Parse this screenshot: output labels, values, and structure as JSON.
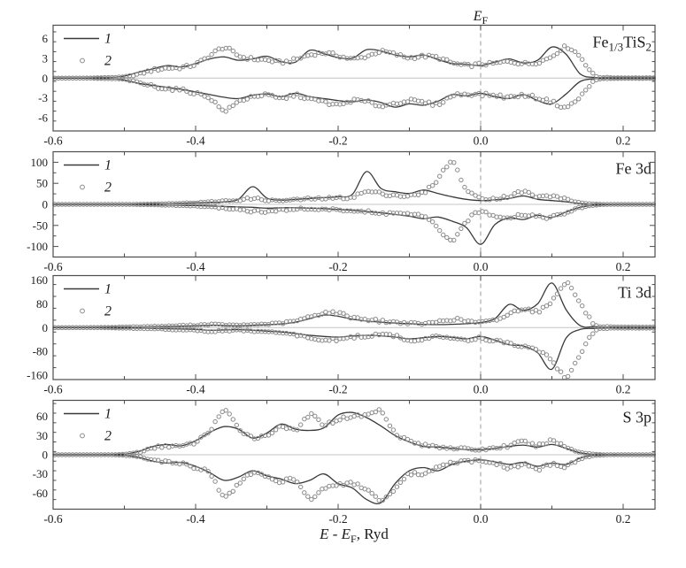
{
  "figure": {
    "top_label_text": "EF",
    "x_axis_title_text": "E - EF, Ryd",
    "colors": {
      "frame": "#4d4d4d",
      "tick": "#4d4d4d",
      "label": "#1c1c1c",
      "line_series": "#3a3a3a",
      "circle_series": "#8a8a8a",
      "zero_line": "#c4c4c4",
      "fermi_dash": "#ababab",
      "background": "#ffffff"
    }
  },
  "chart_data": {
    "type": "line",
    "xlabel_segments": [
      {
        "t": "E",
        "italic": true
      },
      {
        "t": " - "
      },
      {
        "t": "E",
        "italic": true
      },
      {
        "t": "F",
        "sub": true
      },
      {
        "t": ", Ryd"
      }
    ],
    "fermi_label_segments": [
      {
        "t": "E",
        "italic": true
      },
      {
        "t": "F",
        "sub": true
      }
    ],
    "x_start": -0.6,
    "x_step": 0.02,
    "x_end": 0.245,
    "x_tick_step": 0.1,
    "x_ticks_labeled": [
      -0.6,
      -0.4,
      -0.2,
      0.0,
      0.2
    ],
    "fermi_line_x": 0.0,
    "marker_spacing": 0.005,
    "legend": {
      "line_label": "1",
      "circle_label": "2"
    },
    "grid": false,
    "legend_position": "top-left",
    "panels": [
      {
        "title": "Fe1/3TiS2",
        "title_segments": [
          {
            "t": "Fe"
          },
          {
            "t": "1/3",
            "sub": true
          },
          {
            "t": "TiS"
          },
          {
            "t": "2",
            "sub": true
          }
        ],
        "ylim": [
          -8,
          8
        ],
        "y_ticks": [
          -6,
          -3,
          0,
          3,
          6
        ],
        "y_minor_step": 1.5,
        "series": [
          {
            "name": "1",
            "style": "line",
            "up": [
              0,
              0,
              0,
              0.05,
              0.1,
              0.3,
              0.9,
              1.4,
              1.9,
              1.7,
              2.2,
              2.9,
              3.2,
              2.7,
              2.9,
              3.3,
              2.5,
              2.4,
              4.2,
              3.7,
              3.1,
              3.0,
              4.3,
              4.1,
              3.5,
              3.2,
              3.5,
              2.8,
              2.2,
              2.1,
              1.9,
              2.4,
              2.9,
              2.3,
              2.7,
              4.7,
              3.6,
              0.6,
              0.1,
              0.05,
              0.05,
              0.05,
              0.05
            ],
            "down": [
              0,
              0,
              0,
              -0.05,
              -0.1,
              -0.3,
              -0.8,
              -1.1,
              -1.4,
              -1.7,
              -2.1,
              -2.5,
              -2.9,
              -3.1,
              -2.6,
              -2.4,
              -2.8,
              -2.3,
              -2.8,
              -3.1,
              -3.4,
              -3.6,
              -3.3,
              -3.7,
              -4.4,
              -3.9,
              -4.1,
              -3.5,
              -2.5,
              -2.7,
              -2.3,
              -2.8,
              -3.1,
              -2.5,
              -3.4,
              -3.9,
              -2.4,
              -0.5,
              -0.1,
              -0.05,
              -0.05,
              -0.05,
              -0.05
            ]
          },
          {
            "name": "2",
            "style": "circles",
            "up": [
              0,
              0,
              0,
              0.05,
              0.1,
              0.2,
              0.6,
              1.2,
              1.5,
              1.6,
              2.1,
              3.4,
              4.6,
              3.4,
              2.9,
              2.7,
              2.4,
              2.8,
              3.5,
              3.8,
              3.4,
              2.9,
              3.3,
              4.0,
              3.6,
              3.1,
              3.3,
              3.1,
              2.3,
              1.9,
              2.1,
              2.2,
              2.5,
              2.2,
              2.4,
              3.3,
              4.7,
              3.2,
              0.4,
              0.1,
              0.05,
              0.05,
              0.05
            ],
            "down": [
              0,
              0,
              0,
              -0.05,
              -0.1,
              -0.2,
              -0.7,
              -1.2,
              -1.6,
              -1.8,
              -2.3,
              -3.0,
              -4.9,
              -3.6,
              -2.8,
              -2.6,
              -3.1,
              -2.6,
              -3.2,
              -3.6,
              -4.1,
              -3.4,
              -3.6,
              -4.2,
              -3.8,
              -3.4,
              -3.7,
              -3.9,
              -2.7,
              -2.4,
              -2.5,
              -2.6,
              -2.9,
              -2.6,
              -3.0,
              -3.6,
              -4.4,
              -2.8,
              -0.4,
              -0.1,
              -0.05,
              -0.05,
              -0.05
            ]
          }
        ]
      },
      {
        "title": "Fe 3d",
        "title_segments": [
          {
            "t": "Fe 3d"
          }
        ],
        "ylim": [
          -125,
          125
        ],
        "y_ticks": [
          -100,
          -50,
          0,
          50,
          100
        ],
        "y_minor_step": 25,
        "series": [
          {
            "name": "1",
            "style": "line",
            "up": [
              0,
              0,
              0,
              0,
              0,
              0,
              0.5,
              1,
              2,
              3,
              4,
              5,
              6,
              12,
              42,
              15,
              10,
              12,
              14,
              16,
              18,
              24,
              78,
              38,
              30,
              26,
              34,
              26,
              18,
              12,
              9,
              11,
              14,
              20,
              12,
              9,
              6,
              2,
              0.5,
              0,
              0,
              0,
              0
            ],
            "down": [
              0,
              0,
              0,
              0,
              0,
              0,
              -0.5,
              -1,
              -2,
              -2.5,
              -3,
              -4,
              -5,
              -6,
              -7,
              -9,
              -8,
              -8,
              -9,
              -10,
              -12,
              -14,
              -17,
              -20,
              -24,
              -28,
              -34,
              -30,
              -40,
              -55,
              -95,
              -48,
              -32,
              -36,
              -26,
              -31,
              -18,
              -7,
              -2,
              -0.5,
              0,
              0,
              0
            ]
          },
          {
            "name": "2",
            "style": "circles",
            "up": [
              0,
              0,
              0,
              0,
              0,
              0,
              0.5,
              1,
              2,
              3,
              4,
              6,
              8,
              10,
              14,
              10,
              9,
              11,
              13,
              14,
              15,
              18,
              30,
              26,
              22,
              20,
              28,
              60,
              100,
              35,
              16,
              14,
              20,
              30,
              18,
              20,
              12,
              4,
              1,
              0,
              0,
              0,
              0
            ],
            "down": [
              0,
              0,
              0,
              0,
              0,
              0,
              -0.5,
              -1,
              -2,
              -3,
              -4,
              -6,
              -9,
              -12,
              -16,
              -18,
              -14,
              -11,
              -11,
              -12,
              -13,
              -15,
              -18,
              -22,
              -20,
              -24,
              -30,
              -55,
              -88,
              -40,
              -18,
              -26,
              -30,
              -24,
              -28,
              -30,
              -20,
              -8,
              -2,
              0,
              0,
              0,
              0
            ]
          }
        ]
      },
      {
        "title": "Ti 3d",
        "title_segments": [
          {
            "t": "Ti 3d"
          }
        ],
        "ylim": [
          -175,
          175
        ],
        "y_ticks": [
          -160,
          -80,
          0,
          80,
          160
        ],
        "y_minor_step": 40,
        "series": [
          {
            "name": "1",
            "style": "line",
            "up": [
              0,
              0,
              0,
              0.5,
              1,
              1.5,
              2,
              3,
              4,
              5,
              6,
              8,
              7,
              6,
              8,
              10,
              12,
              18,
              30,
              42,
              38,
              28,
              22,
              18,
              15,
              13,
              11,
              10,
              11,
              13,
              17,
              30,
              78,
              58,
              80,
              150,
              60,
              6,
              3,
              2,
              2,
              2,
              2
            ],
            "down": [
              0,
              0,
              0,
              -0.5,
              -1,
              -1.5,
              -2,
              -3,
              -4,
              -5,
              -6,
              -9,
              -8,
              -7,
              -9,
              -12,
              -15,
              -20,
              -26,
              -30,
              -32,
              -28,
              -26,
              -28,
              -32,
              -38,
              -34,
              -30,
              -33,
              -38,
              -30,
              -42,
              -58,
              -62,
              -85,
              -140,
              -35,
              -6,
              -3,
              -2,
              -2,
              -2,
              -2
            ]
          },
          {
            "name": "2",
            "style": "circles",
            "up": [
              0,
              0,
              0,
              0.5,
              1,
              2,
              3,
              4,
              5,
              7,
              8,
              11,
              9,
              8,
              10,
              12,
              15,
              22,
              35,
              50,
              48,
              35,
              28,
              22,
              18,
              15,
              13,
              20,
              28,
              22,
              18,
              25,
              45,
              65,
              55,
              90,
              150,
              80,
              10,
              3,
              2,
              2,
              2
            ],
            "down": [
              0,
              0,
              0,
              -0.5,
              -1,
              -2,
              -3,
              -4,
              -6,
              -8,
              -9,
              -13,
              -11,
              -9,
              -12,
              -15,
              -18,
              -25,
              -35,
              -42,
              -40,
              -32,
              -28,
              -25,
              -28,
              -42,
              -38,
              -32,
              -35,
              -40,
              -35,
              -45,
              -55,
              -65,
              -75,
              -110,
              -165,
              -90,
              -12,
              -3,
              -2,
              -2,
              -2
            ]
          }
        ]
      },
      {
        "title": "S 3p",
        "title_segments": [
          {
            "t": "S 3p"
          }
        ],
        "ylim": [
          -85,
          85
        ],
        "y_ticks": [
          -60,
          -30,
          0,
          30,
          60
        ],
        "y_minor_step": 15,
        "series": [
          {
            "name": "1",
            "style": "line",
            "up": [
              0,
              0,
              0,
              0,
              0,
              1,
              5,
              13,
              16,
              14,
              22,
              35,
              44,
              40,
              26,
              34,
              48,
              40,
              38,
              42,
              62,
              66,
              58,
              45,
              30,
              20,
              13,
              12,
              10,
              8,
              8,
              10,
              13,
              15,
              12,
              16,
              10,
              3,
              0.5,
              0,
              0,
              0,
              0
            ],
            "down": [
              0,
              0,
              0,
              0,
              0,
              -1,
              -4,
              -10,
              -13,
              -12,
              -18,
              -28,
              -40,
              -35,
              -25,
              -33,
              -38,
              -45,
              -40,
              -30,
              -45,
              -52,
              -70,
              -75,
              -45,
              -25,
              -20,
              -25,
              -15,
              -10,
              -8,
              -11,
              -15,
              -12,
              -18,
              -13,
              -15,
              -5,
              -1,
              0,
              0,
              0,
              0
            ]
          },
          {
            "name": "2",
            "style": "circles",
            "up": [
              0,
              0,
              0,
              0,
              0,
              1,
              4,
              10,
              14,
              13,
              20,
              38,
              68,
              42,
              28,
              30,
              45,
              38,
              62,
              48,
              55,
              60,
              62,
              68,
              35,
              22,
              15,
              13,
              11,
              9,
              8,
              11,
              14,
              20,
              14,
              22,
              12,
              4,
              1,
              0,
              0,
              0,
              0
            ],
            "down": [
              0,
              0,
              0,
              0,
              0,
              -1,
              -3,
              -8,
              -12,
              -13,
              -20,
              -30,
              -65,
              -45,
              -28,
              -35,
              -42,
              -38,
              -68,
              -52,
              -48,
              -45,
              -55,
              -72,
              -55,
              -30,
              -32,
              -20,
              -13,
              -10,
              -10,
              -13,
              -20,
              -15,
              -22,
              -15,
              -18,
              -6,
              -1.5,
              0,
              0,
              0,
              0
            ]
          }
        ]
      }
    ]
  }
}
